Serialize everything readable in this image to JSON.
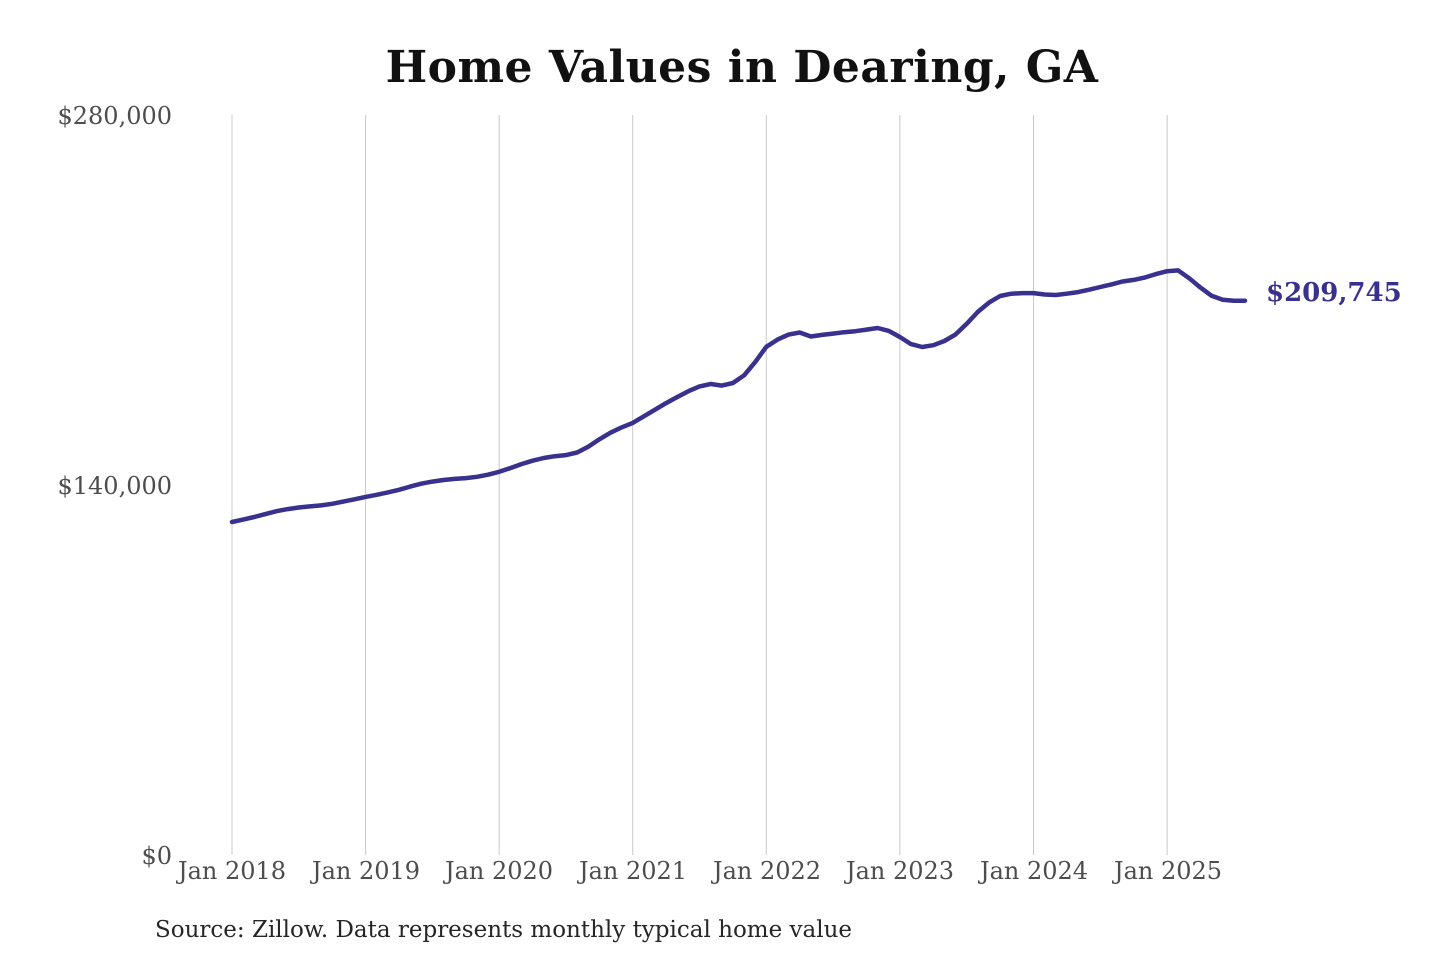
{
  "title": "Home Values in Dearing, GA",
  "source_note": "Source: Zillow. Data represents monthly typical home value",
  "end_label": "$209,745",
  "colors": {
    "background": "#ffffff",
    "line": "#39318e",
    "grid": "#c9c9c9",
    "tick_text": "#4d4d4d",
    "title_text": "#111111",
    "source_text": "#262626"
  },
  "chart_data": {
    "type": "line",
    "title": "Home Values in Dearing, GA",
    "xlabel": "",
    "ylabel": "",
    "legend": "none",
    "grid": "vertical-yearly",
    "ylim": [
      0,
      280000
    ],
    "y_tick_values": [
      280000,
      140000,
      0
    ],
    "y_tick_labels": [
      "$280,000",
      "$140,000",
      "$0"
    ],
    "x_tick_labels": [
      "Jan 2018",
      "Jan 2019",
      "Jan 2020",
      "Jan 2021",
      "Jan 2022",
      "Jan 2023",
      "Jan 2024",
      "Jan 2025"
    ],
    "x_start_month": "2018-01",
    "x_end_month": "2025-08",
    "last_value": 209745,
    "last_value_label": "$209,745",
    "series": [
      {
        "name": "Monthly typical home value",
        "monthly_values": [
          126000,
          126900,
          127900,
          129000,
          130100,
          130900,
          131500,
          131900,
          132300,
          132900,
          133700,
          134600,
          135500,
          136300,
          137200,
          138200,
          139400,
          140500,
          141300,
          141900,
          142300,
          142600,
          143100,
          143900,
          145000,
          146400,
          147900,
          149200,
          150200,
          150900,
          151300,
          152300,
          154500,
          157300,
          159800,
          161800,
          163500,
          166000,
          168500,
          171000,
          173300,
          175500,
          177300,
          178200,
          177600,
          178600,
          181500,
          186500,
          192300,
          195000,
          196900,
          197700,
          196200,
          196800,
          197300,
          197800,
          198200,
          198800,
          199400,
          198300,
          196000,
          193300,
          192200,
          192900,
          194500,
          197000,
          201000,
          205500,
          209000,
          211500,
          212400,
          212600,
          212600,
          212100,
          211900,
          212400,
          213000,
          213900,
          214900,
          215900,
          217000,
          217600,
          218500,
          219800,
          220900,
          221200,
          218200,
          214700,
          211600,
          210100,
          209700,
          209745
        ]
      }
    ]
  }
}
